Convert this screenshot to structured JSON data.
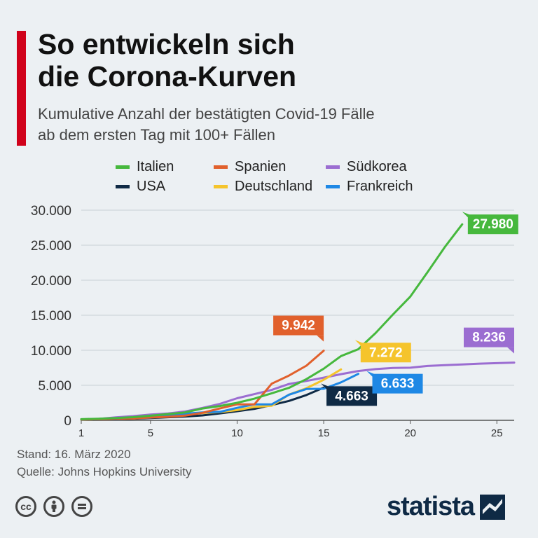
{
  "header": {
    "title": "So entwickeln sich\ndie Corona-Kurven",
    "subtitle": "Kumulative Anzahl der bestätigten Covid-19 Fälle\nab dem ersten Tag mit 100+ Fällen"
  },
  "footer": {
    "stand": "Stand: 16. März 2020",
    "source": "Quelle: Johns Hopkins University"
  },
  "license_icons": [
    "cc-icon",
    "person-icon",
    "equals-icon"
  ],
  "brand": {
    "name": "statista",
    "color": "#0f2a45"
  },
  "colors": {
    "accent": "#d0021b",
    "background": "#ecf0f3"
  },
  "chart_data": {
    "type": "line",
    "title": "",
    "xlabel": "",
    "ylabel": "",
    "xlim": [
      1,
      26
    ],
    "ylim": [
      0,
      30000
    ],
    "xticks": [
      1,
      5,
      10,
      15,
      20,
      25
    ],
    "yticks": [
      0,
      5000,
      10000,
      15000,
      20000,
      25000,
      30000
    ],
    "ytick_labels": [
      "0",
      "5.000",
      "10.000",
      "15.000",
      "20.000",
      "25.000",
      "30.000"
    ],
    "grid": "horizontal",
    "legend_position": "top",
    "series": [
      {
        "name": "Italien",
        "color": "#46b83d",
        "x": [
          1,
          2,
          3,
          4,
          5,
          6,
          7,
          8,
          9,
          10,
          11,
          12,
          13,
          14,
          15,
          16,
          17,
          18,
          19,
          20,
          21,
          22,
          23
        ],
        "y": [
          155,
          229,
          322,
          453,
          655,
          888,
          1128,
          1694,
          2036,
          2502,
          3089,
          3858,
          4636,
          5883,
          7375,
          9172,
          10149,
          12462,
          15113,
          17660,
          21157,
          24747,
          27980
        ],
        "end_label": "27.980"
      },
      {
        "name": "Spanien",
        "color": "#e1602c",
        "x": [
          1,
          2,
          3,
          4,
          5,
          6,
          7,
          8,
          9,
          10,
          11,
          12,
          13,
          14,
          15
        ],
        "y": [
          120,
          165,
          222,
          259,
          400,
          500,
          673,
          1073,
          1695,
          2277,
          2277,
          5232,
          6391,
          7798,
          9942
        ],
        "end_label": "9.942"
      },
      {
        "name": "Südkorea",
        "color": "#9b6dd1",
        "x": [
          1,
          2,
          3,
          4,
          5,
          6,
          7,
          8,
          9,
          10,
          11,
          12,
          13,
          14,
          15,
          16,
          17,
          18,
          19,
          20,
          21,
          22,
          23,
          24,
          25,
          26
        ],
        "y": [
          104,
          204,
          433,
          602,
          833,
          977,
          1261,
          1766,
          2337,
          3150,
          3736,
          4335,
          5186,
          5621,
          6088,
          6593,
          7041,
          7314,
          7478,
          7513,
          7755,
          7869,
          7979,
          8086,
          8162,
          8236
        ],
        "end_label": "8.236"
      },
      {
        "name": "USA",
        "color": "#0f2a45",
        "x": [
          1,
          2,
          3,
          4,
          5,
          6,
          7,
          8,
          9,
          10,
          11,
          12,
          13,
          14,
          15
        ],
        "y": [
          100,
          124,
          158,
          221,
          319,
          435,
          541,
          704,
          994,
          1301,
          1630,
          2183,
          2770,
          3613,
          4663
        ],
        "end_label": "4.663"
      },
      {
        "name": "Deutschland",
        "color": "#f5c42c",
        "x": [
          1,
          2,
          3,
          4,
          5,
          6,
          7,
          8,
          9,
          10,
          11,
          12,
          13,
          14,
          15,
          16
        ],
        "y": [
          130,
          159,
          196,
          262,
          482,
          670,
          799,
          1040,
          1176,
          1457,
          1908,
          2078,
          3675,
          4585,
          5795,
          7272
        ],
        "end_label": "7.272"
      },
      {
        "name": "Frankreich",
        "color": "#1e88e5",
        "x": [
          1,
          2,
          3,
          4,
          5,
          6,
          7,
          8,
          9,
          10,
          11,
          12,
          13,
          14,
          15,
          16,
          17
        ],
        "y": [
          130,
          191,
          204,
          285,
          377,
          653,
          949,
          1126,
          1209,
          1784,
          2281,
          2281,
          3661,
          4469,
          4499,
          5423,
          6633
        ],
        "end_label": "6.633"
      }
    ],
    "legend_order": [
      "Italien",
      "Spanien",
      "Südkorea",
      "USA",
      "Deutschland",
      "Frankreich"
    ]
  }
}
